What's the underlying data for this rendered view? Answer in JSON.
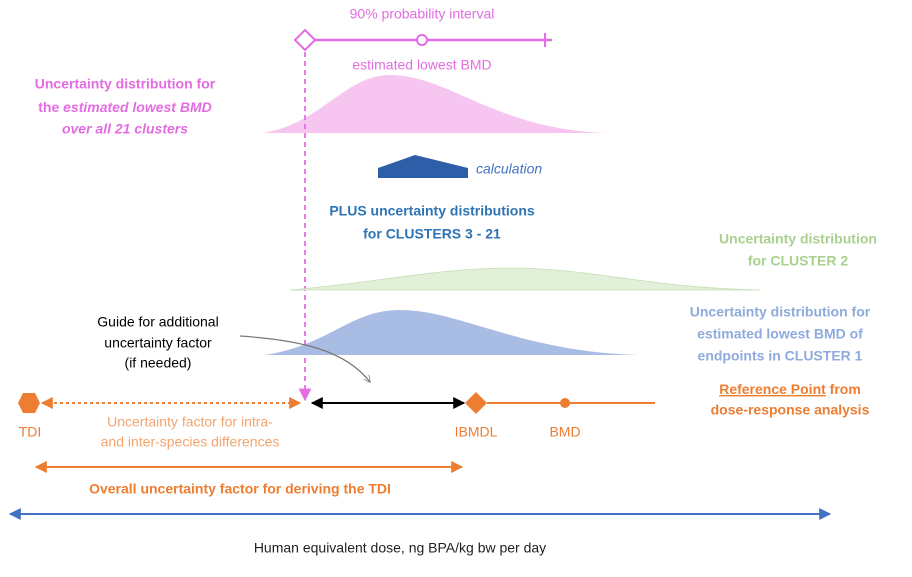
{
  "interval": {
    "title": "90% probability interval",
    "point_label": "estimated lowest BMD"
  },
  "overall_distribution": {
    "line1": "Uncertainty distribution for",
    "line2_plain": "the ",
    "line2_italic": "estimated lowest BMD",
    "line3": "over all 21 clusters"
  },
  "calculation": "calculation",
  "plus": {
    "line1": "PLUS uncertainty distributions",
    "line2": "for CLUSTERS 3 - 21"
  },
  "cluster2": {
    "line1": "Uncertainty distribution",
    "line2": "for CLUSTER 2"
  },
  "cluster1": {
    "line1": "Uncertainty distribution for",
    "line2": "estimated lowest BMD of",
    "line3": "endpoints in CLUSTER 1"
  },
  "guide": {
    "line1": "Guide for additional",
    "line2": "uncertainty factor",
    "line3": "(if needed)"
  },
  "reference_point": {
    "underlined": "Reference Point",
    "rest": " from",
    "line2": "dose-response analysis"
  },
  "dose_line": {
    "tdi": "TDI",
    "uf_line1": "Uncertainty factor for intra-",
    "uf_line2": "and inter-species differences",
    "bmdl": "IBMDL",
    "bmd": "BMD"
  },
  "overall_uf": "Overall uncertainty factor for deriving the TDI",
  "axis_label": "Human equivalent dose, ng BPA/kg bw per day"
}
